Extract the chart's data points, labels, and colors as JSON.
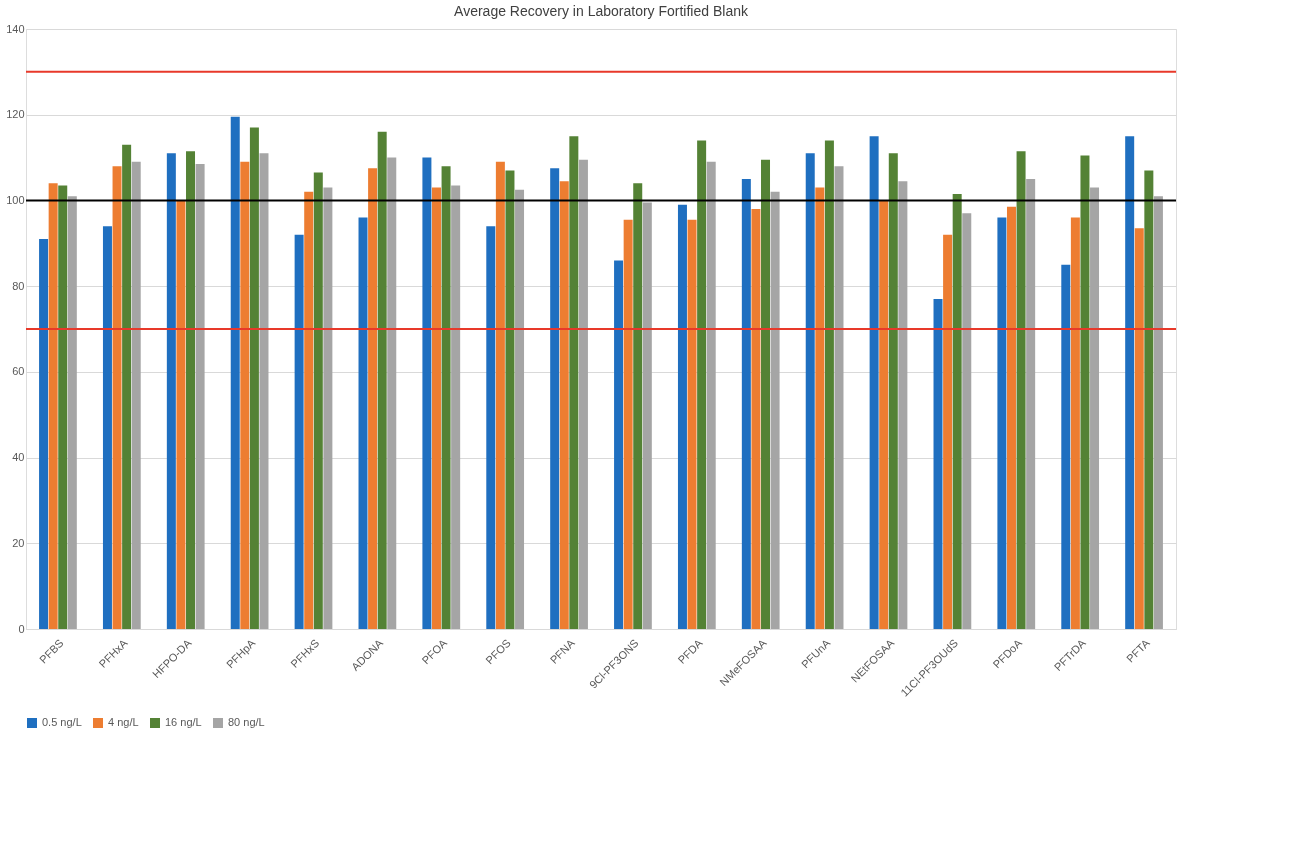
{
  "chart_data": {
    "type": "bar",
    "title": "Average Recovery in Laboratory Fortified Blank",
    "categories": [
      "PFBS",
      "PFHxA",
      "HFPO-DA",
      "PFHpA",
      "PFHxS",
      "ADONA",
      "PFOA",
      "PFOS",
      "PFNA",
      "9Cl-PF3ONS",
      "PFDA",
      "NMeFOSAA",
      "PFUnA",
      "NEtFOSAA",
      "11Cl-PF3OUdS",
      "PFDoA",
      "PFTrDA",
      "PFTA"
    ],
    "series": [
      {
        "name": "0.5 ng/L",
        "color": "#1f6fc0",
        "values": [
          91,
          94,
          111,
          119.5,
          92,
          96,
          110,
          94,
          107.5,
          86,
          99,
          105,
          111,
          115,
          77,
          96,
          85,
          115
        ]
      },
      {
        "name": "4 ng/L",
        "color": "#ed7d31",
        "values": [
          104,
          108,
          100,
          109,
          102,
          107.5,
          103,
          109,
          104.5,
          95.5,
          95.5,
          98,
          103,
          100,
          92,
          98.5,
          96,
          93.5
        ]
      },
      {
        "name": "16 ng/L",
        "color": "#548235",
        "values": [
          103.5,
          113,
          111.5,
          117,
          106.5,
          116,
          108,
          107,
          115,
          104,
          114,
          109.5,
          114,
          111,
          101.5,
          111.5,
          110.5,
          107
        ]
      },
      {
        "name": "80 ng/L",
        "color": "#a5a5a5",
        "values": [
          101,
          109,
          108.5,
          111,
          103,
          110,
          103.5,
          102.5,
          109.5,
          99.5,
          109,
          102,
          108,
          104.5,
          97,
          105,
          103,
          101
        ]
      }
    ],
    "ylim": [
      0,
      140
    ],
    "yticks": [
      0,
      20,
      40,
      60,
      80,
      100,
      120,
      140
    ],
    "grid": "y",
    "legend": "bottom",
    "ref_lines": [
      {
        "axis": "y",
        "value": 130,
        "color": "#e8392a"
      },
      {
        "axis": "y",
        "value": 100,
        "color": "#000000"
      },
      {
        "axis": "y",
        "value": 70,
        "color": "#e8392a"
      }
    ]
  }
}
